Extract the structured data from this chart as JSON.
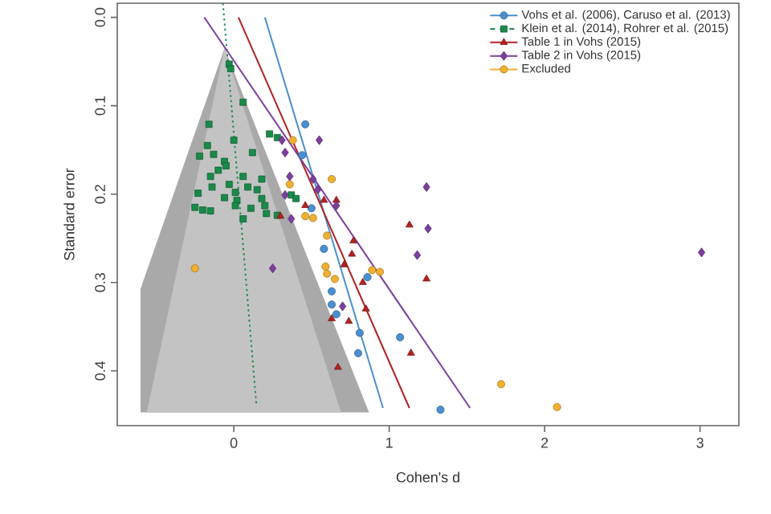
{
  "chart_data": {
    "type": "scatter",
    "xlabel": "Cohen's d",
    "ylabel": "Standard error",
    "xlim": [
      -0.75,
      3.25
    ],
    "ylim": [
      0.462,
      -0.016
    ],
    "xticks": [
      0,
      1,
      2,
      3
    ],
    "yticks": [
      {
        "value": 0,
        "label": "0.0"
      },
      {
        "value": 0.1,
        "label": "0.1"
      },
      {
        "value": 0.2,
        "label": "0.2"
      },
      {
        "value": 0.3,
        "label": "0.3"
      },
      {
        "value": 0.4,
        "label": "0.4"
      }
    ],
    "legend": "top right",
    "series": [
      {
        "type": "area",
        "color": "#a9a9a9",
        "x": [
          -0.06,
          0.87,
          -0.6,
          -0.6
        ],
        "values": [
          0.035,
          0.447,
          0.447,
          0.307
        ]
      },
      {
        "type": "area",
        "color": "#c3c3c3",
        "x": [
          -0.06,
          0.69,
          -0.56
        ],
        "values": [
          0.035,
          0.447,
          0.447
        ]
      },
      {
        "type": "line",
        "color": "#4a8fd0",
        "line_style": "solid",
        "x": [
          0.2,
          0.96
        ],
        "values": [
          0,
          0.442
        ]
      },
      {
        "type": "line",
        "color": "#1a8a4a",
        "line_style": "dotted",
        "x": [
          -0.07,
          0.145
        ],
        "values": [
          -0.016,
          0.438
        ]
      },
      {
        "type": "line",
        "color": "#b22222",
        "line_style": "solid",
        "x": [
          0.03,
          1.13
        ],
        "values": [
          0,
          0.442
        ]
      },
      {
        "type": "line",
        "color": "#7b3f9e",
        "line_style": "solid",
        "x": [
          -0.19,
          1.52
        ],
        "values": [
          0,
          0.442
        ]
      },
      {
        "name": "Vohs et al. (2006), Caruso et al. (2013)",
        "color": "#4a8fd0",
        "marker": "circle",
        "line_style": "solid",
        "x": [
          0.46,
          0.44,
          0.5,
          0.58,
          0.86,
          0.63,
          0.63,
          0.66,
          0.81,
          1.07,
          0.8,
          1.33
        ],
        "values": [
          0.121,
          0.156,
          0.216,
          0.262,
          0.294,
          0.31,
          0.325,
          0.336,
          0.357,
          0.362,
          0.38,
          0.444
        ]
      },
      {
        "name": "Klein et al. (2014), Rohrer et al. (2015)",
        "color": "#1a8a4a",
        "marker": "square",
        "line_style": "dashed",
        "x": [
          -0.03,
          -0.02,
          0.06,
          -0.16,
          0,
          0.12,
          -0.17,
          -0.13,
          -0.22,
          -0.06,
          -0.05,
          -0.1,
          -0.15,
          0.06,
          0.18,
          0.09,
          0.15,
          -0.03,
          -0.14,
          0.01,
          -0.06,
          0.02,
          -0.23,
          -0.25,
          -0.2,
          -0.15,
          0.01,
          0.11,
          0.18,
          0.2,
          0.23,
          0.28,
          0.37,
          0.21,
          0.28,
          0.06,
          0.4
        ],
        "values": [
          0.053,
          0.058,
          0.096,
          0.121,
          0.139,
          0.153,
          0.145,
          0.155,
          0.157,
          0.163,
          0.168,
          0.173,
          0.18,
          0.18,
          0.183,
          0.192,
          0.195,
          0.189,
          0.192,
          0.198,
          0.204,
          0.207,
          0.199,
          0.215,
          0.218,
          0.219,
          0.213,
          0.216,
          0.205,
          0.213,
          0.132,
          0.136,
          0.201,
          0.222,
          0.224,
          0.228,
          0.205
        ]
      },
      {
        "name": "Table 1 in Vohs (2015)",
        "color": "#b22222",
        "marker": "triangle",
        "line_style": "solid",
        "x": [
          0.3,
          0.46,
          0.58,
          0.66,
          0.77,
          1.13,
          0.76,
          0.71,
          1.24,
          0.83,
          0.85,
          0.63,
          0.74,
          1.14,
          0.67
        ],
        "values": [
          0.225,
          0.213,
          0.207,
          0.207,
          0.253,
          0.235,
          0.268,
          0.28,
          0.296,
          0.3,
          0.33,
          0.341,
          0.344,
          0.38,
          0.396
        ]
      },
      {
        "name": "Table 2 in Vohs (2015)",
        "color": "#7b3f9e",
        "marker": "diamond",
        "line_style": "solid",
        "x": [
          0.31,
          0.55,
          0.33,
          0.36,
          0.51,
          0.54,
          0.33,
          0.66,
          0.37,
          1.24,
          1.25,
          1.18,
          3.01,
          0.7,
          0.25
        ],
        "values": [
          0.139,
          0.139,
          0.153,
          0.18,
          0.183,
          0.195,
          0.201,
          0.213,
          0.228,
          0.192,
          0.239,
          0.269,
          0.266,
          0.327,
          0.284
        ]
      },
      {
        "name": "Excluded",
        "color": "#f0b030",
        "marker": "circle",
        "line_style": "solid",
        "x": [
          0.38,
          0.63,
          0.36,
          0.46,
          0.51,
          0.6,
          0.59,
          0.6,
          0.65,
          0.89,
          0.94,
          1.72,
          2.08,
          -0.25
        ],
        "values": [
          0.139,
          0.183,
          0.189,
          0.225,
          0.227,
          0.247,
          0.282,
          0.29,
          0.296,
          0.286,
          0.288,
          0.415,
          0.441,
          0.284
        ]
      }
    ]
  }
}
